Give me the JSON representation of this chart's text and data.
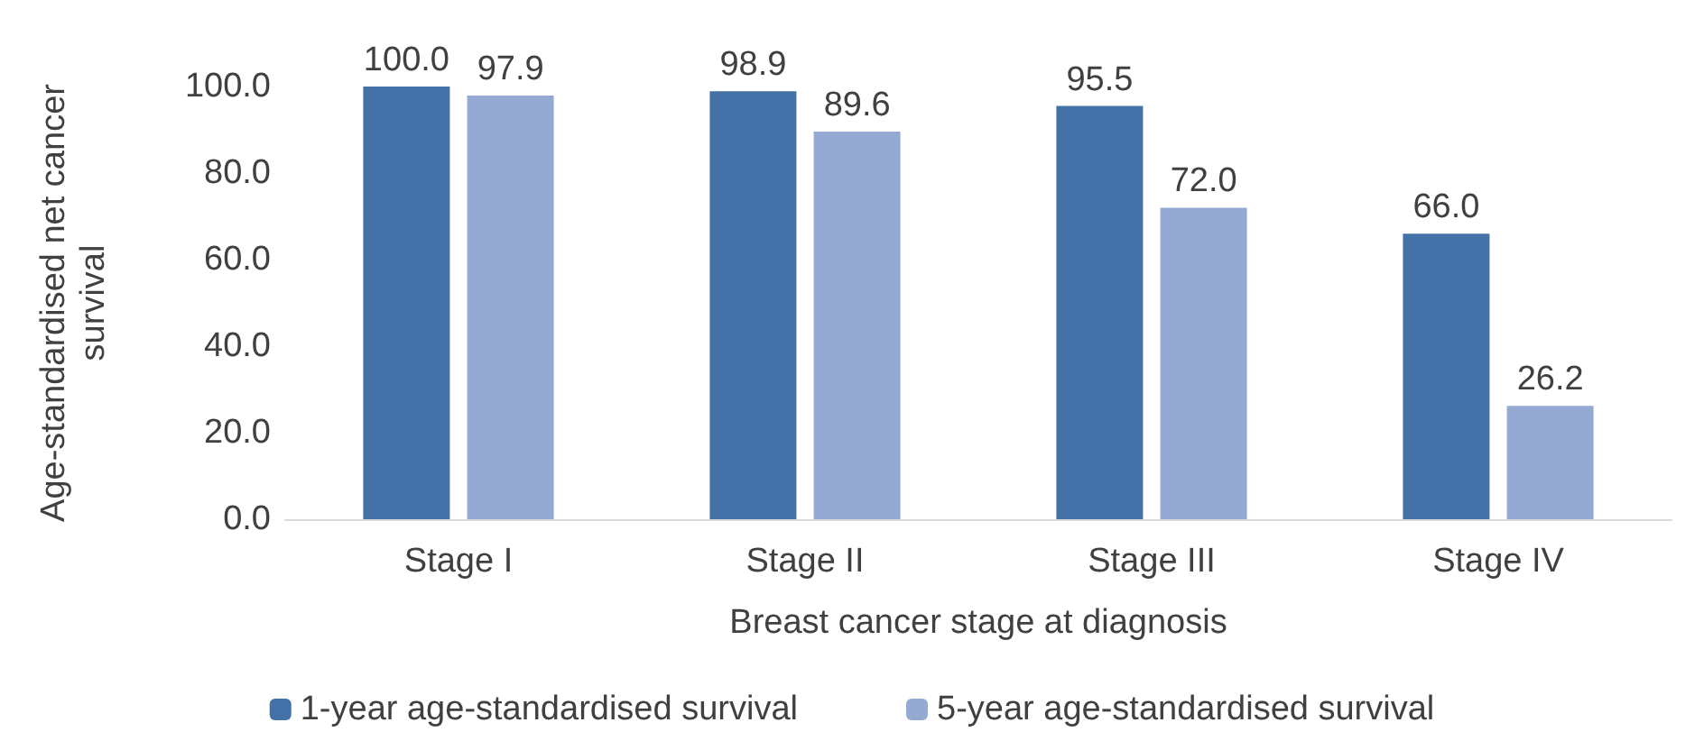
{
  "chart_data": {
    "type": "bar",
    "xlabel": "Breast cancer stage at diagnosis",
    "ylabel": "Age-standardised net cancer\nsurvival",
    "categories": [
      "Stage I",
      "Stage II",
      "Stage III",
      "Stage IV"
    ],
    "series": [
      {
        "name": "1-year age-standardised survival",
        "color": "#4472a8",
        "values": [
          100.0,
          98.9,
          95.5,
          66.0
        ],
        "value_labels": [
          "100.0",
          "98.9",
          "95.5",
          "66.0"
        ]
      },
      {
        "name": "5-year age-standardised survival",
        "color": "#94aad3",
        "values": [
          97.9,
          89.6,
          72.0,
          26.2
        ],
        "value_labels": [
          "97.9",
          "89.6",
          "72.0",
          "26.2"
        ]
      }
    ],
    "ylim": [
      0,
      100
    ],
    "yticks": [
      {
        "value": 0,
        "label": "0.0"
      },
      {
        "value": 20,
        "label": "20.0"
      },
      {
        "value": 40,
        "label": "40.0"
      },
      {
        "value": 60,
        "label": "60.0"
      },
      {
        "value": 80,
        "label": "80.0"
      },
      {
        "value": 100,
        "label": "100.0"
      }
    ],
    "grid": false,
    "legend": "bottom"
  }
}
